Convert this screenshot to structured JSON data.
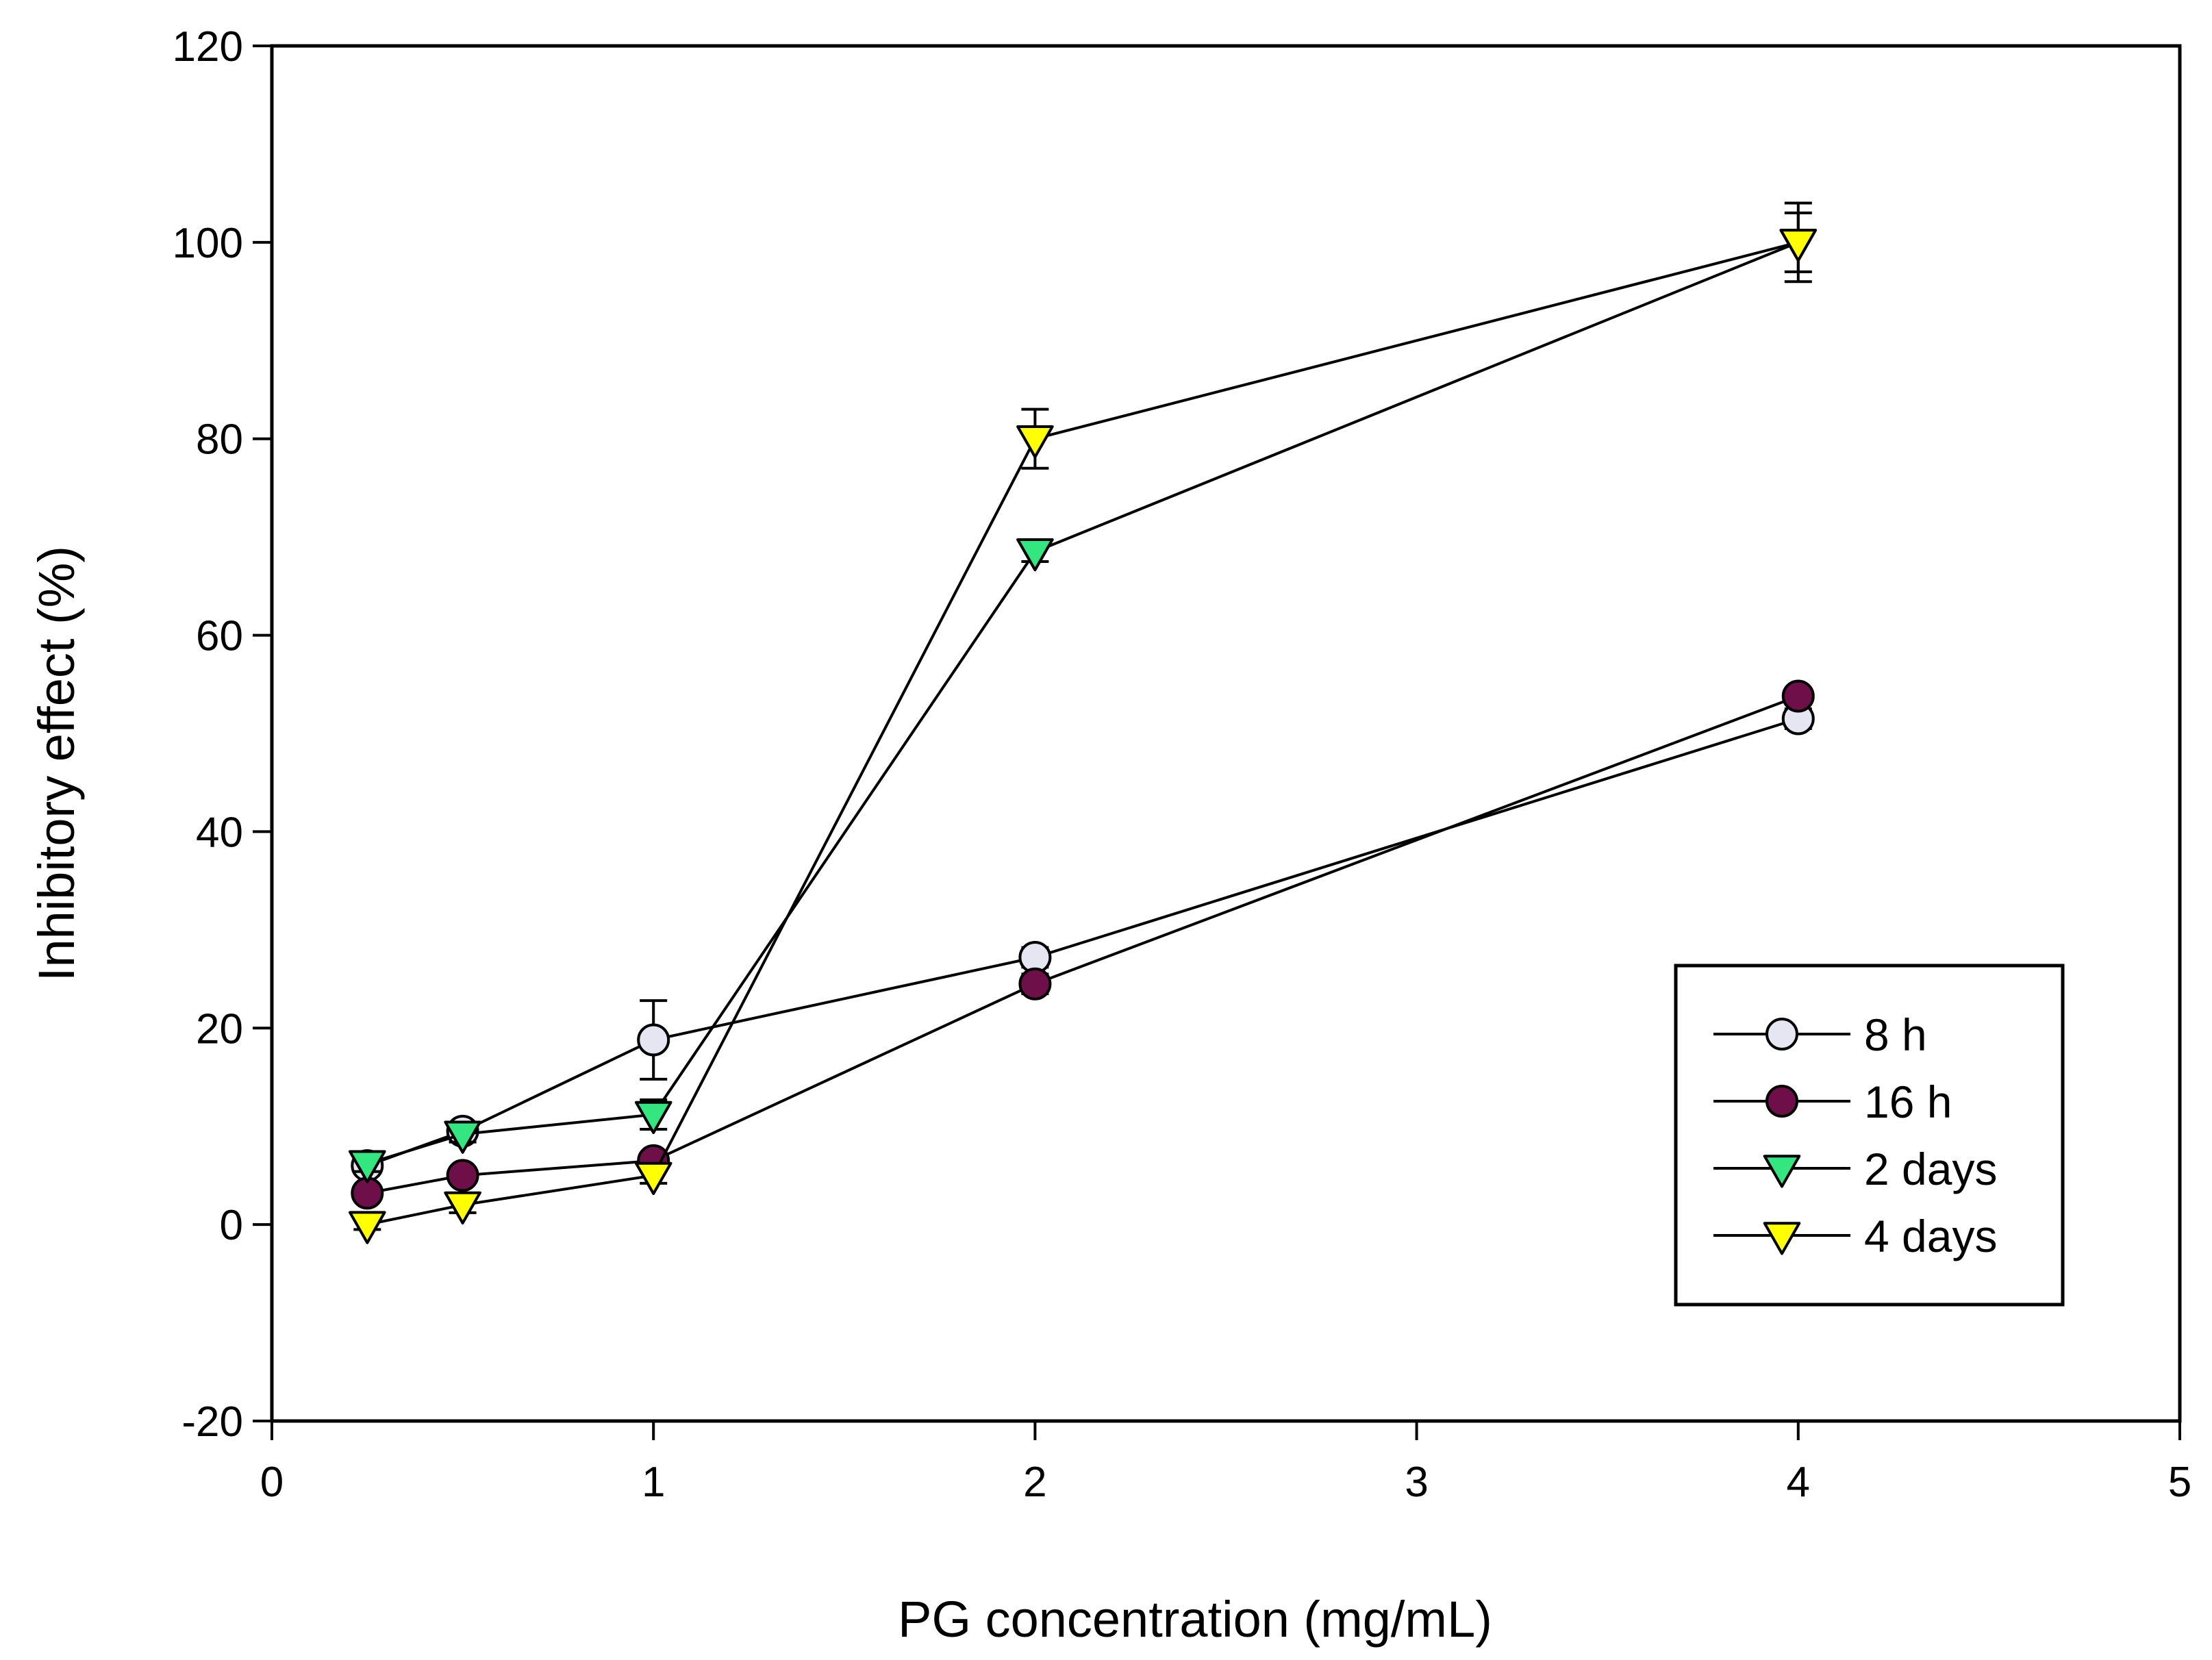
{
  "chart_data": {
    "type": "line",
    "title": "",
    "xlabel": "PG concentration (mg/mL)",
    "ylabel": "Inhibitory effect  (%)",
    "xlim": [
      0,
      5
    ],
    "ylim": [
      -20,
      120
    ],
    "xticks": [
      0,
      1,
      2,
      3,
      4,
      5
    ],
    "yticks": [
      -20,
      0,
      20,
      40,
      60,
      80,
      100,
      120
    ],
    "grid": false,
    "legend_position": "lower-right",
    "series": [
      {
        "name": "8 h",
        "marker": "circle",
        "fill": "#e6e6f2",
        "x": [
          0.25,
          0.5,
          1,
          2,
          4
        ],
        "y": [
          6,
          9.5,
          18.8,
          27.2,
          51.5
        ],
        "err": [
          0.8,
          0.8,
          4,
          1,
          1
        ]
      },
      {
        "name": "16 h",
        "marker": "circle",
        "fill": "#6e0f4a",
        "x": [
          0.25,
          0.5,
          1,
          2,
          4
        ],
        "y": [
          3.2,
          5,
          6.5,
          24.5,
          53.8
        ],
        "err": [
          0.6,
          0.6,
          0.8,
          1,
          0.8
        ]
      },
      {
        "name": "2 days",
        "marker": "triangle-down",
        "fill": "#33e680",
        "x": [
          0.25,
          0.5,
          1,
          2,
          4
        ],
        "y": [
          6.2,
          9.2,
          11.2,
          68.5,
          100
        ],
        "err": [
          0.8,
          0.8,
          1.5,
          1,
          3
        ]
      },
      {
        "name": "4 days",
        "marker": "triangle-down",
        "fill": "#ffff00",
        "x": [
          0.25,
          0.5,
          1,
          2,
          4
        ],
        "y": [
          0,
          2,
          5,
          80,
          100
        ],
        "err": [
          0.5,
          0.8,
          0.8,
          3,
          4
        ]
      }
    ]
  }
}
